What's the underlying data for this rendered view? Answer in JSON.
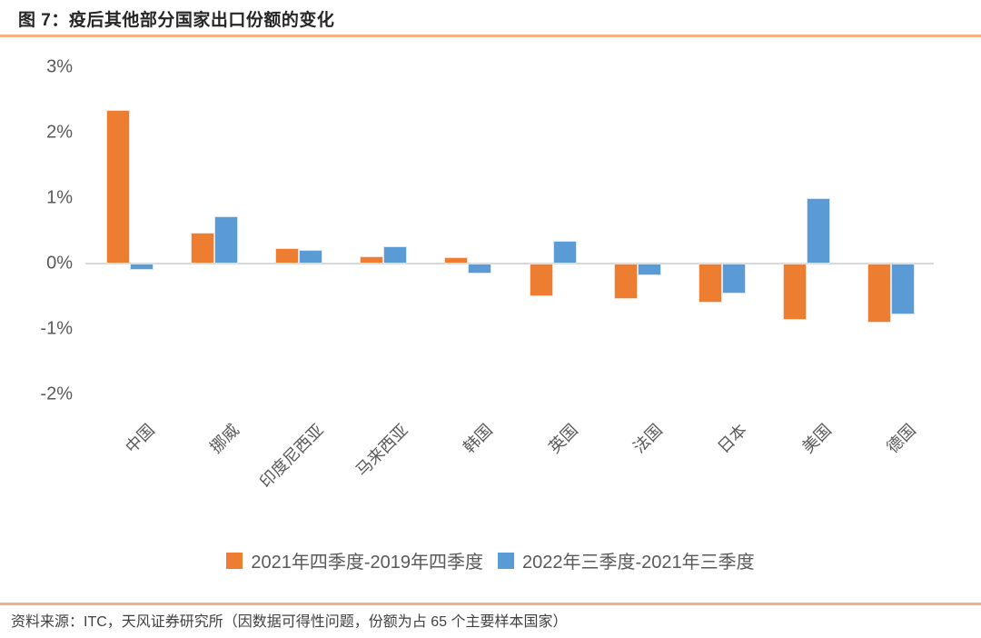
{
  "title": "图 7：疫后其他部分国家出口份额的变化",
  "footer": {
    "source_text": "资料来源：ITC，天风证券研究所（因数据可得性问题，份额为占 65 个主要样本国家）"
  },
  "colors": {
    "accent_rule": "#F4B183",
    "series_orange": "#ED7D31",
    "series_blue": "#5B9BD5",
    "axis_text": "#595959",
    "zero_line": "#D9D9D9"
  },
  "chart_data": {
    "type": "bar",
    "title": "图 7：疫后其他部分国家出口份额的变化",
    "categories": [
      "中国",
      "挪威",
      "印度尼西亚",
      "马来西亚",
      "韩国",
      "英国",
      "法国",
      "日本",
      "美国",
      "德国"
    ],
    "series": [
      {
        "name": "2021年四季度-2019年四季度",
        "color": "#ED7D31",
        "values": [
          2.35,
          0.47,
          0.24,
          0.11,
          0.1,
          -0.5,
          -0.55,
          -0.6,
          -0.86,
          -0.9
        ]
      },
      {
        "name": "2022年三季度-2021年三季度",
        "color": "#5B9BD5",
        "values": [
          -0.1,
          0.72,
          0.21,
          0.26,
          -0.15,
          0.35,
          -0.18,
          -0.46,
          1.0,
          -0.78
        ]
      }
    ],
    "y_ticks": [
      "3%",
      "2%",
      "1%",
      "0%",
      "-1%",
      "-2%"
    ],
    "y_tick_values": [
      3,
      2,
      1,
      0,
      -1,
      -2
    ],
    "ylim": [
      -2.2,
      3.27
    ],
    "xlabel": "",
    "ylabel": "",
    "grid": false,
    "legend_position": "bottom"
  }
}
